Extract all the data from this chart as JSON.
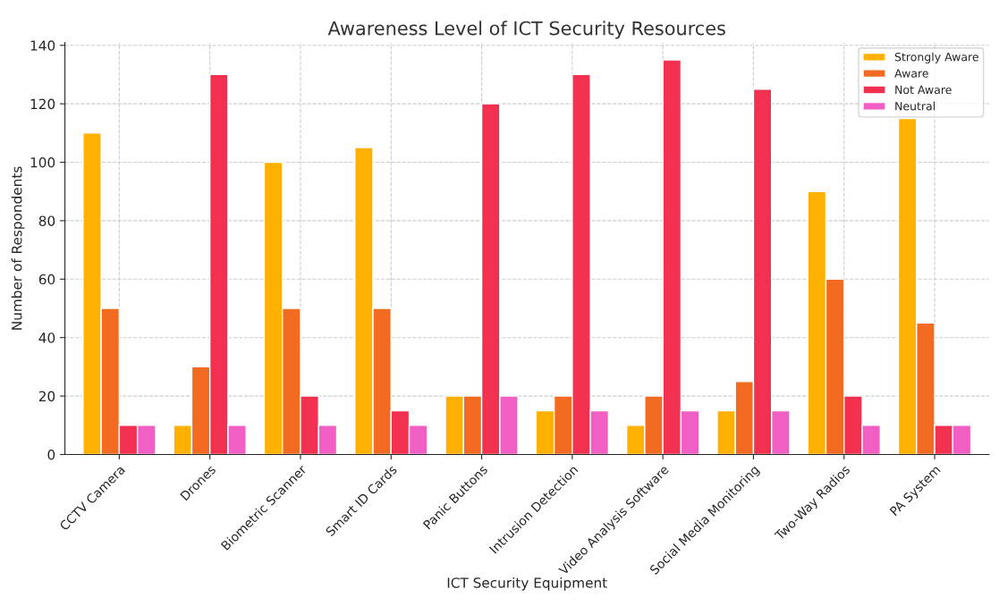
{
  "chart_data": {
    "type": "bar",
    "title": "Awareness Level of ICT Security Resources",
    "xlabel": "ICT Security Equipment",
    "ylabel": "Number of Respondents",
    "categories": [
      "CCTV Camera",
      "Drones",
      "Biometric Scanner",
      "Smart ID Cards",
      "Panic Buttons",
      "Intrusion Detection",
      "Video Analysis Software",
      "Social Media Monitoring",
      "Two-Way Radios",
      "PA System"
    ],
    "series": [
      {
        "name": "Strongly Aware",
        "color": "#ffb000",
        "values": [
          110,
          10,
          100,
          105,
          20,
          15,
          10,
          15,
          90,
          115
        ]
      },
      {
        "name": "Aware",
        "color": "#f26b21",
        "values": [
          50,
          30,
          50,
          50,
          20,
          20,
          20,
          25,
          60,
          45
        ]
      },
      {
        "name": "Not Aware",
        "color": "#f2304f",
        "values": [
          10,
          130,
          20,
          15,
          120,
          130,
          135,
          125,
          20,
          10
        ]
      },
      {
        "name": "Neutral",
        "color": "#f25fc4",
        "values": [
          10,
          10,
          10,
          10,
          20,
          15,
          15,
          15,
          10,
          10
        ]
      }
    ],
    "ylim": [
      0,
      141
    ],
    "yticks": [
      0,
      20,
      40,
      60,
      80,
      100,
      120,
      140
    ],
    "grid": true,
    "legend": "top right"
  }
}
